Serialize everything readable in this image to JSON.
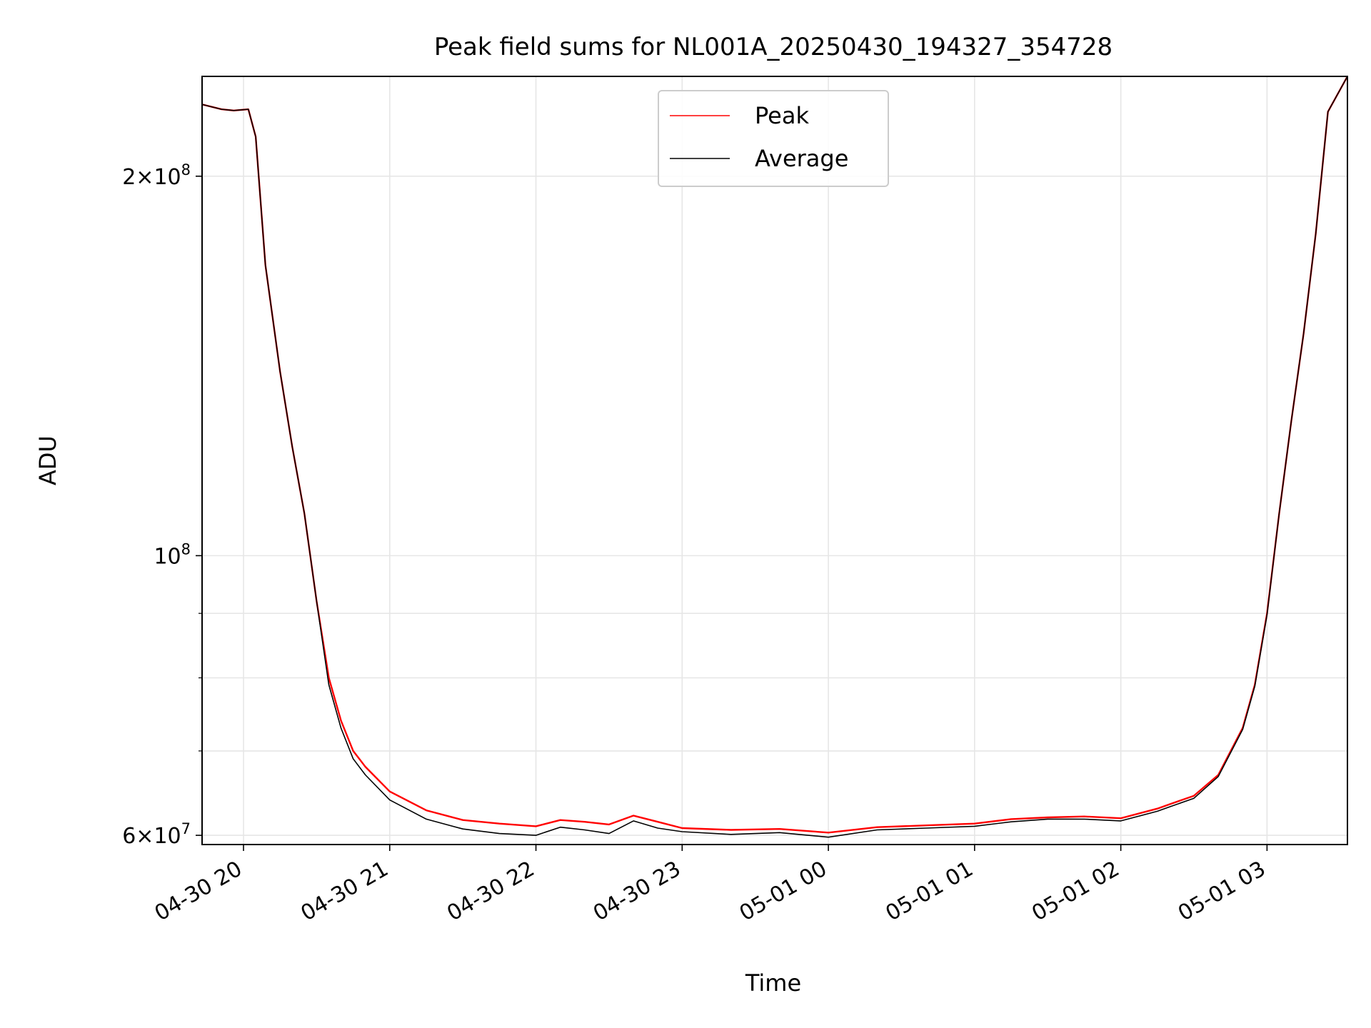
{
  "chart_data": {
    "type": "line",
    "title": "Peak field sums for NL001A_20250430_194327_354728",
    "xlabel": "Time",
    "ylabel": "ADU",
    "y_scale": "log",
    "ylim": [
      59000000,
      240000000
    ],
    "xlim": [
      "2025-04-30 19:43",
      "2025-05-01 03:33"
    ],
    "grid": true,
    "legend": {
      "position": "upper center",
      "entries": [
        "Peak",
        "Average"
      ]
    },
    "colors": {
      "Peak": "#ff0000",
      "Average": "#000000",
      "grid": "#e6e6e6"
    },
    "x_ticks": [
      {
        "value": "2025-04-30 20:00",
        "label": "04-30 20"
      },
      {
        "value": "2025-04-30 21:00",
        "label": "04-30 21"
      },
      {
        "value": "2025-04-30 22:00",
        "label": "04-30 22"
      },
      {
        "value": "2025-04-30 23:00",
        "label": "04-30 23"
      },
      {
        "value": "2025-05-01 00:00",
        "label": "05-01 00"
      },
      {
        "value": "2025-05-01 01:00",
        "label": "05-01 01"
      },
      {
        "value": "2025-05-01 02:00",
        "label": "05-01 02"
      },
      {
        "value": "2025-05-01 03:00",
        "label": "05-01 03"
      }
    ],
    "y_ticks": [
      {
        "value": 60000000,
        "base": "6",
        "exp": "7"
      },
      {
        "value": 100000000,
        "base": "",
        "exp": "8"
      },
      {
        "value": 200000000,
        "base": "2",
        "exp": "8"
      }
    ],
    "y_minor_ticks": [
      70000000,
      80000000,
      90000000
    ],
    "x": [
      "2025-04-30 19:43",
      "2025-04-30 19:51",
      "2025-04-30 19:56",
      "2025-04-30 20:02",
      "2025-04-30 20:05",
      "2025-04-30 20:09",
      "2025-04-30 20:15",
      "2025-04-30 20:20",
      "2025-04-30 20:25",
      "2025-04-30 20:30",
      "2025-04-30 20:35",
      "2025-04-30 20:40",
      "2025-04-30 20:45",
      "2025-04-30 20:50",
      "2025-04-30 21:00",
      "2025-04-30 21:15",
      "2025-04-30 21:30",
      "2025-04-30 21:45",
      "2025-04-30 22:00",
      "2025-04-30 22:10",
      "2025-04-30 22:20",
      "2025-04-30 22:30",
      "2025-04-30 22:40",
      "2025-04-30 22:50",
      "2025-04-30 23:00",
      "2025-04-30 23:20",
      "2025-04-30 23:40",
      "2025-05-01 00:00",
      "2025-05-01 00:20",
      "2025-05-01 00:40",
      "2025-05-01 01:00",
      "2025-05-01 01:15",
      "2025-05-01 01:30",
      "2025-05-01 01:45",
      "2025-05-01 02:00",
      "2025-05-01 02:15",
      "2025-05-01 02:20",
      "2025-05-01 02:30",
      "2025-05-01 02:40",
      "2025-05-01 02:50",
      "2025-05-01 02:55",
      "2025-05-01 03:00",
      "2025-05-01 03:05",
      "2025-05-01 03:10",
      "2025-05-01 03:15",
      "2025-05-01 03:20",
      "2025-05-01 03:25",
      "2025-05-01 03:33"
    ],
    "series": [
      {
        "name": "Peak",
        "values": [
          228000000,
          226000000,
          225500000,
          226000000,
          215000000,
          170000000,
          140000000,
          122000000,
          108000000,
          92000000,
          80000000,
          74000000,
          70000000,
          68000000,
          65000000,
          62800000,
          61700000,
          61300000,
          61000000,
          61700000,
          61500000,
          61200000,
          62200000,
          61500000,
          60800000,
          60600000,
          60700000,
          60300000,
          60900000,
          61100000,
          61300000,
          61800000,
          62000000,
          62100000,
          61900000,
          63000000,
          63500000,
          64500000,
          67000000,
          73000000,
          79000000,
          90000000,
          108000000,
          128000000,
          150000000,
          180000000,
          225000000,
          240000000
        ]
      },
      {
        "name": "Average",
        "values": [
          228000000,
          226000000,
          225500000,
          226000000,
          215000000,
          170000000,
          140000000,
          122000000,
          108000000,
          92000000,
          79000000,
          73000000,
          69000000,
          67000000,
          64000000,
          61800000,
          60700000,
          60200000,
          60000000,
          60900000,
          60600000,
          60200000,
          61600000,
          60800000,
          60400000,
          60100000,
          60300000,
          59800000,
          60600000,
          60800000,
          61000000,
          61500000,
          61800000,
          61800000,
          61600000,
          62700000,
          63200000,
          64200000,
          66800000,
          72800000,
          78800000,
          89800000,
          108000000,
          128000000,
          150000000,
          180000000,
          225000000,
          240000000
        ]
      }
    ]
  }
}
